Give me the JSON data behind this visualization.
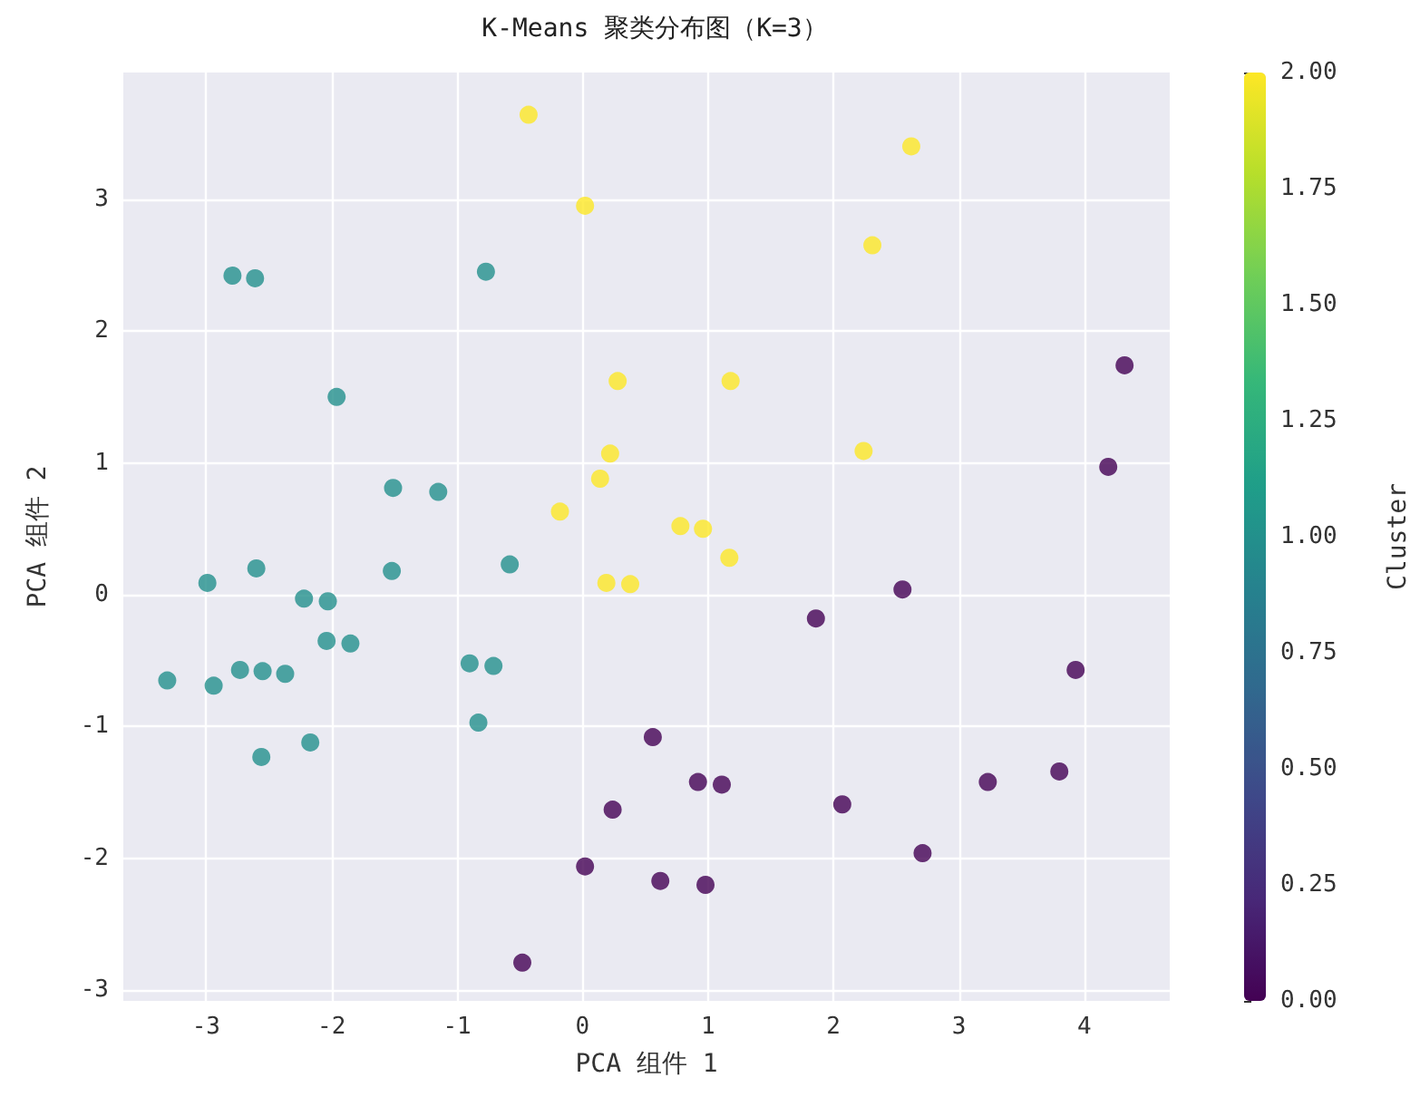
{
  "chart_data": {
    "type": "scatter",
    "title": "K-Means 聚类分布图（K=3）",
    "xlabel": "PCA 组件 1",
    "ylabel": "PCA 组件 2",
    "clabel": "Cluster",
    "x": [
      -0.43,
      0.02,
      2.62,
      2.31,
      0.28,
      1.18,
      2.24,
      0.22,
      0.14,
      -0.18,
      0.78,
      0.96,
      1.17,
      0.19,
      0.38,
      -2.79,
      -2.61,
      -0.77,
      -1.96,
      -1.51,
      -1.15,
      -2.99,
      -2.6,
      -1.52,
      -0.58,
      -2.22,
      -2.03,
      -2.04,
      -1.85,
      -3.31,
      -2.94,
      -2.73,
      -2.55,
      -2.37,
      -0.9,
      -0.71,
      -0.83,
      -2.56,
      -2.17,
      4.32,
      4.19,
      2.55,
      1.86,
      3.93,
      0.56,
      0.92,
      1.11,
      2.07,
      3.23,
      3.8,
      0.24,
      2.71,
      0.02,
      0.62,
      0.98,
      -0.48
    ],
    "values": [
      3.64,
      2.95,
      3.4,
      2.65,
      1.62,
      1.62,
      1.09,
      1.07,
      0.88,
      0.63,
      0.52,
      0.5,
      0.28,
      0.09,
      0.08,
      2.42,
      2.4,
      2.45,
      1.5,
      0.81,
      0.78,
      0.09,
      0.2,
      0.18,
      0.23,
      -0.03,
      -0.05,
      -0.35,
      -0.37,
      -0.65,
      -0.69,
      -0.57,
      -0.58,
      -0.6,
      -0.52,
      -0.54,
      -0.97,
      -1.23,
      -1.12,
      1.74,
      0.97,
      0.04,
      -0.18,
      -0.57,
      -1.08,
      -1.42,
      -1.44,
      -1.59,
      -1.42,
      -1.34,
      -1.63,
      -1.96,
      -2.06,
      -2.17,
      -2.2,
      -2.79
    ],
    "cvalues": [
      2,
      2,
      2,
      2,
      2,
      2,
      2,
      2,
      2,
      2,
      2,
      2,
      2,
      2,
      2,
      1,
      1,
      1,
      1,
      1,
      1,
      1,
      1,
      1,
      1,
      1,
      1,
      1,
      1,
      1,
      1,
      1,
      1,
      1,
      1,
      1,
      1,
      1,
      1,
      0,
      0,
      0,
      0,
      0,
      0,
      0,
      0,
      0,
      0,
      0,
      0,
      0,
      0,
      0,
      0,
      0
    ],
    "xlim": [
      -3.66,
      4.68
    ],
    "ylim": [
      -3.08,
      3.96
    ],
    "xticks": [
      -3,
      -2,
      -1,
      0,
      1,
      2,
      3,
      4
    ],
    "yticks": [
      -3,
      -2,
      -1,
      0,
      1,
      2,
      3
    ],
    "clim": [
      0,
      2
    ],
    "cticks": [
      {
        "value": 0,
        "label": "0.00"
      },
      {
        "value": 0.25,
        "label": "0.25"
      },
      {
        "value": 0.5,
        "label": "0.50"
      },
      {
        "value": 0.75,
        "label": "0.75"
      },
      {
        "value": 1,
        "label": "1.00"
      },
      {
        "value": 1.25,
        "label": "1.25"
      },
      {
        "value": 1.5,
        "label": "1.50"
      },
      {
        "value": 1.75,
        "label": "1.75"
      },
      {
        "value": 2,
        "label": "2.00"
      }
    ],
    "grid": true,
    "marker": "circle"
  }
}
